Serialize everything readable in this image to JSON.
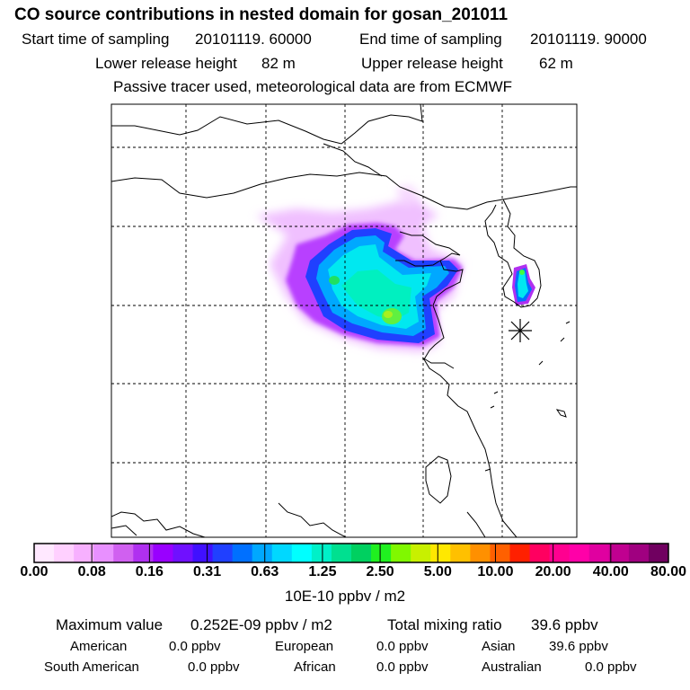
{
  "header": {
    "title": "CO  source contributions in nested domain for gosan_201011",
    "start_label": "Start time of sampling",
    "start_value": "20101119. 60000",
    "end_label": "End time of sampling",
    "end_value": "20101119. 90000",
    "lower_label": "Lower release height",
    "lower_value": "82 m",
    "upper_label": "Upper release height",
    "upper_value": "62 m",
    "note": "Passive tracer used, meteorological data are from ECMWF"
  },
  "map": {
    "receptor_marker": "asterisk-receptor",
    "grid": "dashed"
  },
  "colorbar": {
    "colors": [
      "#ffe8ff",
      "#ffd0ff",
      "#f7b0ff",
      "#e890ff",
      "#d060f0",
      "#b030f0",
      "#9900ff",
      "#7010ff",
      "#4010ff",
      "#2040ff",
      "#0070ff",
      "#00a8ff",
      "#00d8ff",
      "#00ffff",
      "#00f0c8",
      "#00e090",
      "#00d060",
      "#20f020",
      "#80f800",
      "#c8f000",
      "#ffe800",
      "#ffc000",
      "#ff9000",
      "#ff6000",
      "#ff2000",
      "#ff0060",
      "#ff0090",
      "#ff00a8",
      "#e000a0",
      "#c00090",
      "#a00080",
      "#700060"
    ],
    "tick_labels": [
      "0.00",
      "0.08",
      "0.16",
      "0.31",
      "0.63",
      "1.25",
      "2.50",
      "5.00",
      "10.00",
      "20.00",
      "40.00",
      "80.00"
    ],
    "unit": "10E-10 ppbv / m2"
  },
  "stats": {
    "max_label": "Maximum value",
    "max_value": "0.252E-09 ppbv / m2",
    "total_label": "Total mixing ratio",
    "total_value": "39.6 ppbv",
    "regions": [
      {
        "name": "American",
        "value": "0.0 ppbv"
      },
      {
        "name": "European",
        "value": "0.0 ppbv"
      },
      {
        "name": "Asian",
        "value": "39.6 ppbv"
      },
      {
        "name": "South American",
        "value": "0.0 ppbv"
      },
      {
        "name": "African",
        "value": "0.0 ppbv"
      },
      {
        "name": "Australian",
        "value": "0.0 ppbv"
      }
    ]
  }
}
